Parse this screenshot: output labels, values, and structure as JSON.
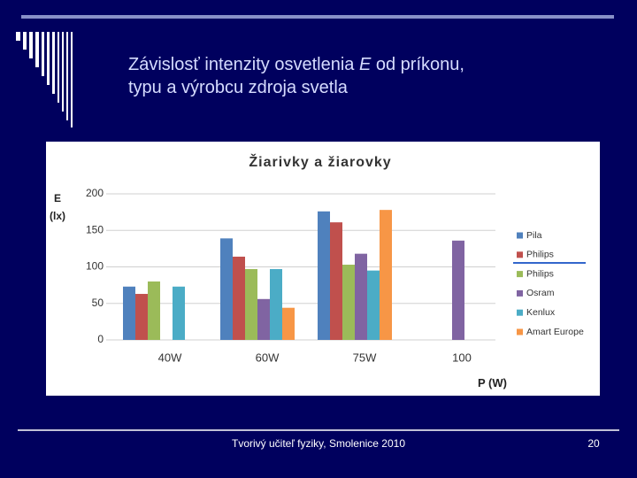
{
  "slide": {
    "title": {
      "before": "Závislosť intenzity osvetlenia ",
      "symbol": "E",
      "after": " od príkonu,",
      "line2": "typu a výrobcu zdroja svetla"
    },
    "footer": "Tvorivý učiteľ fyziky, Smolenice 2010",
    "page_number": "20"
  },
  "chart_data": {
    "type": "bar",
    "title": "Žiarivky a žiarovky",
    "y_label": "E (lx)",
    "x_label": "P (W)",
    "categories": [
      "40W",
      "60W",
      "75W",
      "100"
    ],
    "series": [
      {
        "name": "Pila",
        "color": "#4f81bd",
        "values": [
          73,
          139,
          176,
          null
        ]
      },
      {
        "name": "Philips",
        "color": "#c0504d",
        "values": [
          63,
          114,
          161,
          null
        ]
      },
      {
        "name": "Philips",
        "color": "#9bbb59",
        "values": [
          80,
          97,
          103,
          null
        ]
      },
      {
        "name": "Osram",
        "color": "#8064a2",
        "values": [
          null,
          56,
          118,
          136
        ]
      },
      {
        "name": "Kenlux",
        "color": "#4bacc6",
        "values": [
          73,
          97,
          95,
          null
        ]
      },
      {
        "name": "Amart Europe",
        "color": "#f79646",
        "values": [
          null,
          44,
          178,
          null
        ]
      }
    ],
    "ylim": [
      0,
      200
    ],
    "yticks": [
      0,
      50,
      100,
      150,
      200
    ],
    "grid": true,
    "legend": "right"
  }
}
